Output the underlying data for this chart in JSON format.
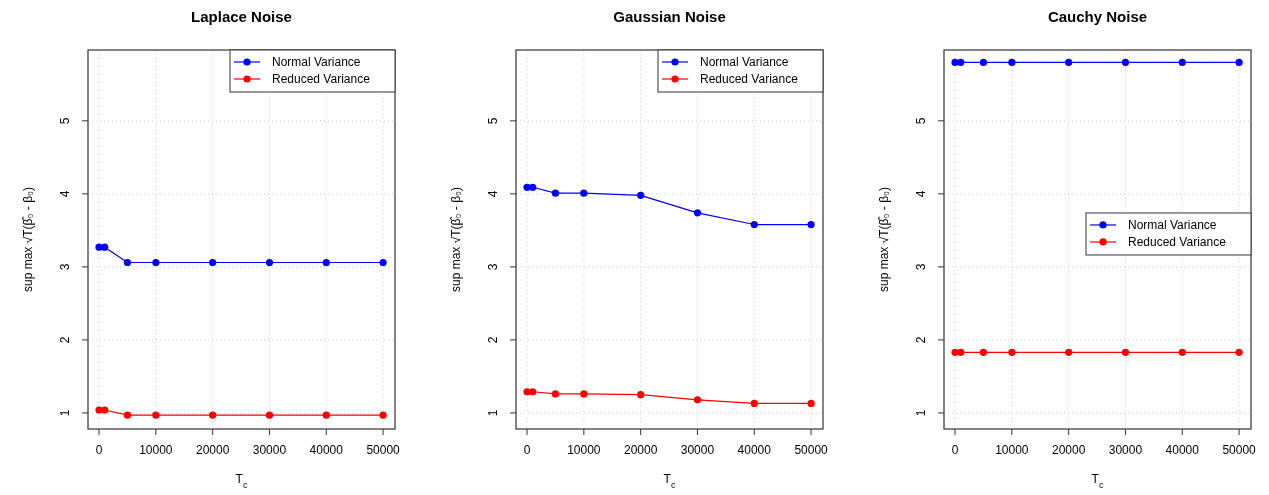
{
  "chart_data": [
    {
      "type": "line",
      "title": "Laplace Noise",
      "xlabel": "T$_{c}$",
      "ylabel": "sup max √T(β̂₀ - β₀)",
      "x": [
        0,
        1000,
        5000,
        10000,
        20000,
        30000,
        40000,
        50000
      ],
      "xlim": [
        -1940,
        52100
      ],
      "xticks": [
        0,
        10000,
        20000,
        30000,
        40000,
        50000
      ],
      "ylim": [
        0.78,
        5.97
      ],
      "yticks": [
        1,
        2,
        3,
        4,
        5
      ],
      "grid": true,
      "legend": "top right",
      "marker": "circle",
      "line_style": "solid",
      "series": [
        {
          "name": "Normal Variance",
          "color": "#0000ff",
          "values": [
            3.27,
            3.27,
            3.06,
            3.06,
            3.06,
            3.06,
            3.06,
            3.06
          ]
        },
        {
          "name": "Reduced Variance",
          "color": "#ff0000",
          "values": [
            1.04,
            1.04,
            0.97,
            0.97,
            0.97,
            0.97,
            0.97,
            0.97
          ]
        }
      ]
    },
    {
      "type": "line",
      "title": "Gaussian Noise",
      "xlabel": "T$_{c}$",
      "ylabel": "sup max √T(β̂₀ - β₀)",
      "x": [
        0,
        1000,
        5000,
        10000,
        20000,
        30000,
        40000,
        50000
      ],
      "xlim": [
        -1940,
        52100
      ],
      "xticks": [
        0,
        10000,
        20000,
        30000,
        40000,
        50000
      ],
      "ylim": [
        0.78,
        5.97
      ],
      "yticks": [
        1,
        2,
        3,
        4,
        5
      ],
      "grid": true,
      "legend": "top right",
      "marker": "circle",
      "line_style": "solid",
      "series": [
        {
          "name": "Normal Variance",
          "color": "#0000ff",
          "values": [
            4.09,
            4.09,
            4.01,
            4.01,
            3.98,
            3.74,
            3.58,
            3.58
          ]
        },
        {
          "name": "Reduced Variance",
          "color": "#ff0000",
          "values": [
            1.29,
            1.29,
            1.26,
            1.26,
            1.25,
            1.18,
            1.13,
            1.13
          ]
        }
      ]
    },
    {
      "type": "line",
      "title": "Cauchy Noise",
      "xlabel": "T$_{c}$",
      "ylabel": "sup max √T(β̂₀ - β₀)",
      "x": [
        0,
        1000,
        5000,
        10000,
        20000,
        30000,
        40000,
        50000
      ],
      "xlim": [
        -1940,
        52100
      ],
      "xticks": [
        0,
        10000,
        20000,
        30000,
        40000,
        50000
      ],
      "ylim": [
        0.78,
        5.97
      ],
      "yticks": [
        1,
        2,
        3,
        4,
        5
      ],
      "grid": true,
      "legend": "right",
      "marker": "circle",
      "line_style": "solid",
      "series": [
        {
          "name": "Normal Variance",
          "color": "#0000ff",
          "values": [
            5.8,
            5.8,
            5.8,
            5.8,
            5.8,
            5.8,
            5.8,
            5.8
          ]
        },
        {
          "name": "Reduced Variance",
          "color": "#ff0000",
          "values": [
            1.83,
            1.83,
            1.83,
            1.83,
            1.83,
            1.83,
            1.83,
            1.83
          ]
        }
      ]
    }
  ]
}
